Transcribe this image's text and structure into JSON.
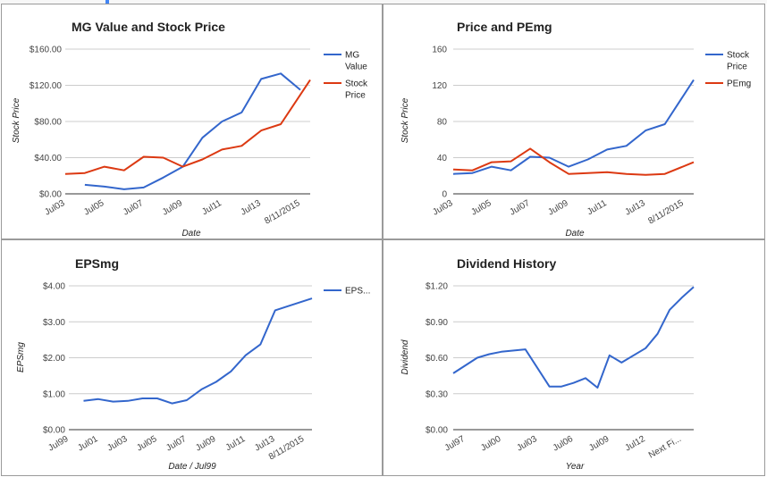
{
  "chart_data": [
    {
      "type": "line",
      "title": "MG Value and Stock Price",
      "xlabel": "Date",
      "ylabel": "Stock Price",
      "ylim": [
        0,
        160
      ],
      "yticks": [
        "$160.00",
        "$120.00",
        "$80.00",
        "$40.00",
        "$0.00"
      ],
      "x_labels": [
        "Jul03",
        "Jul05",
        "Jul07",
        "Jul09",
        "Jul11",
        "Jul13",
        "8/11/2015"
      ],
      "x_label_pos": [
        0,
        2,
        4,
        6,
        8,
        10,
        12
      ],
      "x_max": 12.5,
      "legend_position": "right",
      "series": [
        {
          "name": "MG Value",
          "color": "#3366cc",
          "legend_lines": [
            "MG",
            "Value"
          ],
          "x": [
            1,
            2,
            3,
            4,
            5,
            6,
            7,
            8,
            9,
            10,
            11,
            12,
            12.5
          ],
          "y": [
            10,
            8,
            5,
            7,
            18,
            30,
            62,
            80,
            90,
            127,
            133,
            115,
            null
          ]
        },
        {
          "name": "Stock Price",
          "color": "#dc3912",
          "legend_lines": [
            "Stock",
            "Price"
          ],
          "x": [
            0,
            1,
            2,
            3,
            4,
            5,
            6,
            7,
            8,
            9,
            10,
            11,
            12.5
          ],
          "y": [
            22,
            23,
            30,
            26,
            41,
            40,
            30,
            38,
            49,
            53,
            70,
            77,
            126
          ]
        }
      ]
    },
    {
      "type": "line",
      "title": "Price and PEmg",
      "xlabel": "Date",
      "ylabel": "Stock Price",
      "ylim": [
        0,
        160
      ],
      "yticks": [
        "160",
        "120",
        "80",
        "40",
        "0"
      ],
      "x_labels": [
        "Jul03",
        "Jul05",
        "Jul07",
        "Jul09",
        "Jul11",
        "Jul13",
        "8/11/2015"
      ],
      "x_label_pos": [
        0,
        2,
        4,
        6,
        8,
        10,
        12
      ],
      "x_max": 12.5,
      "legend_position": "right",
      "series": [
        {
          "name": "Stock Price",
          "color": "#3366cc",
          "legend_lines": [
            "Stock",
            "Price"
          ],
          "x": [
            0,
            1,
            2,
            3,
            4,
            5,
            6,
            7,
            8,
            9,
            10,
            11,
            12.5
          ],
          "y": [
            22,
            23,
            30,
            26,
            41,
            40,
            30,
            38,
            49,
            53,
            70,
            77,
            126
          ]
        },
        {
          "name": "PEmg",
          "color": "#dc3912",
          "legend_lines": [
            "PEmg"
          ],
          "x": [
            0,
            1,
            2,
            3,
            4,
            5,
            6,
            7,
            8,
            9,
            10,
            11,
            12.5
          ],
          "y": [
            27,
            26,
            35,
            36,
            50,
            35,
            22,
            23,
            24,
            22,
            21,
            22,
            35
          ]
        }
      ]
    },
    {
      "type": "line",
      "title": "EPSmg",
      "xlabel": "Date / Jul99",
      "ylabel": "EPSmg",
      "ylim": [
        0,
        4
      ],
      "yticks": [
        "$4.00",
        "$3.00",
        "$2.00",
        "$1.00",
        "$0.00"
      ],
      "x_labels": [
        "Jul99",
        "Jul01",
        "Jul03",
        "Jul05",
        "Jul07",
        "Jul09",
        "Jul11",
        "Jul13",
        "8/11/2015"
      ],
      "x_label_pos": [
        0,
        2,
        4,
        6,
        8,
        10,
        12,
        14,
        16
      ],
      "x_max": 16.5,
      "legend_position": "right",
      "series": [
        {
          "name": "EPS...",
          "color": "#3366cc",
          "legend_lines": [
            "EPS..."
          ],
          "x": [
            1,
            2,
            3,
            4,
            5,
            6,
            7,
            8,
            9,
            10,
            11,
            12,
            13,
            14,
            15,
            16.5
          ],
          "y": [
            0.8,
            0.85,
            0.78,
            0.8,
            0.87,
            0.87,
            0.73,
            0.82,
            1.12,
            1.33,
            1.62,
            2.07,
            2.37,
            3.32,
            3.45,
            3.65
          ]
        }
      ]
    },
    {
      "type": "line",
      "title": "Dividend History",
      "xlabel": "Year",
      "ylabel": "Dividend",
      "ylim": [
        0,
        1.2
      ],
      "yticks": [
        "$1.20",
        "$0.90",
        "$0.60",
        "$0.30",
        "$0.00"
      ],
      "x_labels": [
        "Jul97",
        "Jul00",
        "Jul03",
        "Jul06",
        "Jul09",
        "Jul12",
        "Next Fi..."
      ],
      "x_label_pos": [
        1,
        4,
        7,
        10,
        13,
        16,
        19
      ],
      "x_max": 20,
      "legend_position": "none",
      "series": [
        {
          "name": "Dividend",
          "color": "#3366cc",
          "legend_lines": [],
          "x": [
            0,
            2,
            3,
            4,
            6,
            8,
            9,
            10,
            11,
            12,
            13,
            14,
            16,
            17,
            18,
            19,
            20
          ],
          "y": [
            0.47,
            0.6,
            0.63,
            0.65,
            0.67,
            0.36,
            0.36,
            0.39,
            0.43,
            0.35,
            0.62,
            0.56,
            0.68,
            0.8,
            1.0,
            1.1,
            1.19
          ]
        }
      ]
    }
  ]
}
